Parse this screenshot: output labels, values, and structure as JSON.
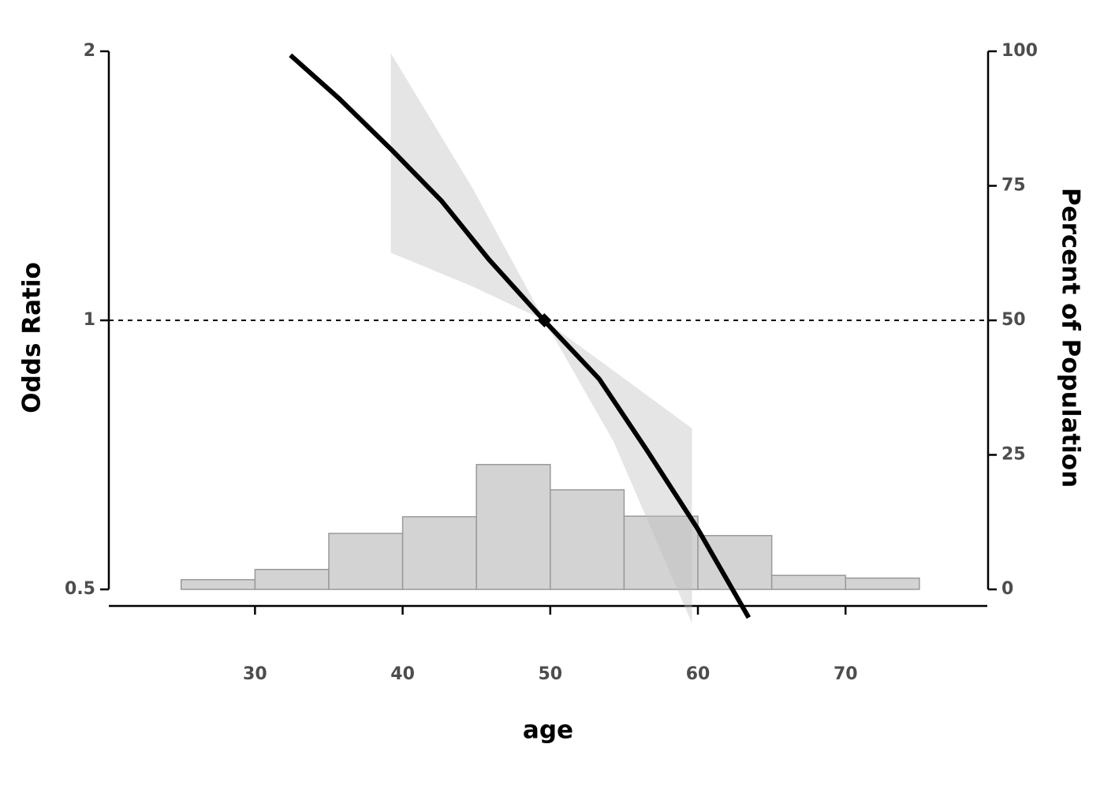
{
  "chart_data": {
    "type": "line",
    "xlabel": "age",
    "ylabel": "Odds Ratio",
    "y2label": "Percent of Population",
    "xlim": [
      20.1,
      79.6
    ],
    "xticks": [
      30,
      40,
      50,
      60,
      70
    ],
    "ylim": [
      0.5,
      2
    ],
    "yticks": [
      0.5,
      1,
      2
    ],
    "yscale": "log",
    "y2lim": [
      0,
      100
    ],
    "y2ticks": [
      0,
      25,
      50,
      75,
      100
    ],
    "hline": 1,
    "reference": {
      "x": 49.6,
      "value": 1
    },
    "series": [
      {
        "type": "histogram",
        "axis": "y2",
        "color": "#d3d3d3",
        "bins": [
          25,
          30,
          35,
          40,
          45,
          50,
          55,
          60,
          65,
          70,
          75
        ],
        "values": [
          1.8,
          3.7,
          10.4,
          13.5,
          23.2,
          18.5,
          13.6,
          10.0,
          2.6,
          2.1
        ]
      },
      {
        "type": "band",
        "color": "#bdbdbd",
        "x": [
          39.2,
          44.8,
          49.6,
          54.3,
          59.6
        ],
        "lower": [
          1.19,
          1.09,
          1.0,
          0.731,
          0.458
        ],
        "upper": [
          1.99,
          1.4,
          1.0,
          0.878,
          0.757
        ]
      },
      {
        "type": "line",
        "color": "#000000",
        "x": [
          32.4,
          35.71,
          39.28,
          42.64,
          45.84,
          49.57,
          53.31,
          56.51,
          59.97,
          63.44
        ],
        "values": [
          1.98,
          1.77,
          1.55,
          1.36,
          1.17,
          1.0,
          0.86,
          0.717,
          0.585,
          0.465
        ]
      }
    ]
  }
}
